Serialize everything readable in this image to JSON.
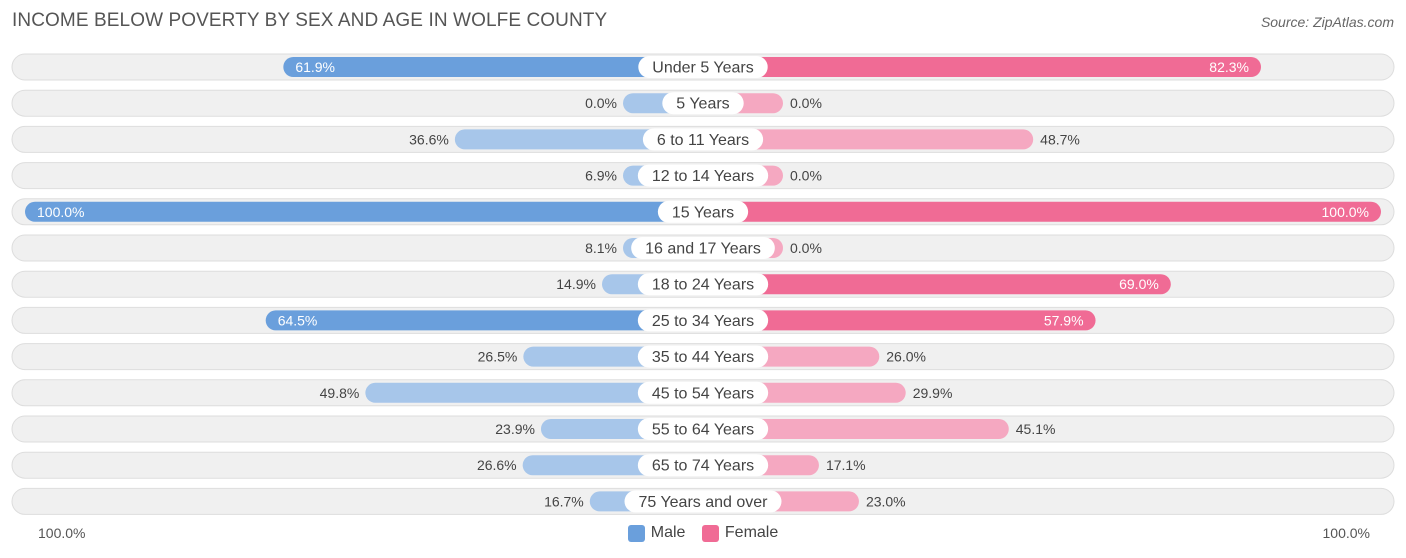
{
  "header": {
    "title": "INCOME BELOW POVERTY BY SEX AND AGE IN WOLFE COUNTY",
    "source": "Source: ZipAtlas.com"
  },
  "axis": {
    "left_label": "100.0%",
    "right_label": "100.0%"
  },
  "legend": {
    "male_label": "Male",
    "female_label": "Female"
  },
  "colors": {
    "male_strong": "#6a9fdc",
    "male_light": "#a7c6ea",
    "female_strong": "#f06b95",
    "female_light": "#f5a8c1",
    "row_bg": "#f0f0f0",
    "row_border": "#dddddd"
  },
  "chart_data": {
    "type": "bar",
    "orientation": "horizontal-diverging",
    "title": "INCOME BELOW POVERTY BY SEX AND AGE IN WOLFE COUNTY",
    "xlim": [
      -100,
      100
    ],
    "categories": [
      "Under 5 Years",
      "5 Years",
      "6 to 11 Years",
      "12 to 14 Years",
      "15 Years",
      "16 and 17 Years",
      "18 to 24 Years",
      "25 to 34 Years",
      "35 to 44 Years",
      "45 to 54 Years",
      "55 to 64 Years",
      "65 to 74 Years",
      "75 Years and over"
    ],
    "series": [
      {
        "name": "Male",
        "values": [
          61.9,
          0.0,
          36.6,
          6.9,
          100.0,
          8.1,
          14.9,
          64.5,
          26.5,
          49.8,
          23.9,
          26.6,
          16.7
        ]
      },
      {
        "name": "Female",
        "values": [
          82.3,
          0.0,
          48.7,
          0.0,
          100.0,
          0.0,
          69.0,
          57.9,
          26.0,
          29.9,
          45.1,
          17.1,
          23.0
        ]
      }
    ],
    "value_labels": {
      "male": [
        "61.9%",
        "0.0%",
        "36.6%",
        "6.9%",
        "100.0%",
        "8.1%",
        "14.9%",
        "64.5%",
        "26.5%",
        "49.8%",
        "23.9%",
        "26.6%",
        "16.7%"
      ],
      "female": [
        "82.3%",
        "0.0%",
        "48.7%",
        "0.0%",
        "100.0%",
        "0.0%",
        "69.0%",
        "57.9%",
        "26.0%",
        "29.9%",
        "45.1%",
        "17.1%",
        "23.0%"
      ]
    },
    "legend_position": "bottom-center"
  }
}
